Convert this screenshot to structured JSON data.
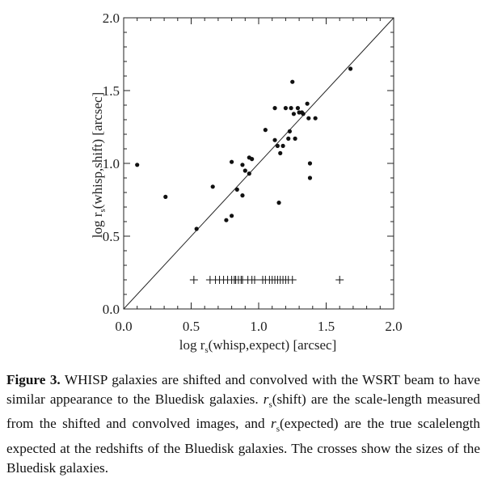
{
  "chart_data": {
    "type": "scatter",
    "xlabel": {
      "pre": "log r",
      "sub": "s",
      "post": "(whisp,expect) [arcsec]"
    },
    "ylabel": {
      "pre": "log r",
      "sub": "s",
      "post": "(whisp,shift) [arcsec]"
    },
    "xlim": [
      0.0,
      2.0
    ],
    "ylim": [
      0.0,
      2.0
    ],
    "x_ticks": [
      "0.0",
      "0.5",
      "1.0",
      "1.5",
      "2.0"
    ],
    "y_ticks": [
      "0.0",
      "0.5",
      "1.0",
      "1.5",
      "2.0"
    ],
    "reference_line": {
      "from": [
        0.0,
        0.0
      ],
      "to": [
        2.0,
        2.0
      ]
    },
    "series": [
      {
        "marker": "dot",
        "points": [
          [
            0.1,
            0.99
          ],
          [
            0.31,
            0.77
          ],
          [
            0.54,
            0.55
          ],
          [
            0.66,
            0.84
          ],
          [
            0.76,
            0.61
          ],
          [
            0.8,
            0.64
          ],
          [
            0.8,
            1.01
          ],
          [
            0.84,
            0.82
          ],
          [
            0.88,
            0.78
          ],
          [
            0.88,
            0.99
          ],
          [
            0.9,
            0.95
          ],
          [
            0.93,
            0.93
          ],
          [
            0.93,
            1.04
          ],
          [
            0.95,
            1.03
          ],
          [
            1.05,
            1.23
          ],
          [
            1.12,
            1.16
          ],
          [
            1.12,
            1.38
          ],
          [
            1.14,
            1.12
          ],
          [
            1.15,
            0.73
          ],
          [
            1.16,
            1.07
          ],
          [
            1.18,
            1.12
          ],
          [
            1.2,
            1.38
          ],
          [
            1.22,
            1.17
          ],
          [
            1.23,
            1.22
          ],
          [
            1.24,
            1.38
          ],
          [
            1.25,
            1.56
          ],
          [
            1.26,
            1.34
          ],
          [
            1.27,
            1.17
          ],
          [
            1.29,
            1.38
          ],
          [
            1.3,
            1.35
          ],
          [
            1.32,
            1.35
          ],
          [
            1.33,
            1.34
          ],
          [
            1.36,
            1.41
          ],
          [
            1.37,
            1.31
          ],
          [
            1.38,
            1.0
          ],
          [
            1.38,
            0.9
          ],
          [
            1.42,
            1.31
          ],
          [
            1.68,
            1.65
          ]
        ]
      },
      {
        "marker": "cross",
        "points": [
          [
            0.52,
            0.2
          ],
          [
            0.64,
            0.2
          ],
          [
            0.68,
            0.2
          ],
          [
            0.71,
            0.2
          ],
          [
            0.74,
            0.2
          ],
          [
            0.77,
            0.2
          ],
          [
            0.8,
            0.2
          ],
          [
            0.82,
            0.2
          ],
          [
            0.83,
            0.2
          ],
          [
            0.85,
            0.2
          ],
          [
            0.87,
            0.2
          ],
          [
            0.88,
            0.2
          ],
          [
            0.92,
            0.2
          ],
          [
            0.95,
            0.2
          ],
          [
            0.97,
            0.2
          ],
          [
            1.03,
            0.2
          ],
          [
            1.05,
            0.2
          ],
          [
            1.08,
            0.2
          ],
          [
            1.1,
            0.2
          ],
          [
            1.12,
            0.2
          ],
          [
            1.14,
            0.2
          ],
          [
            1.16,
            0.2
          ],
          [
            1.18,
            0.2
          ],
          [
            1.2,
            0.2
          ],
          [
            1.22,
            0.2
          ],
          [
            1.25,
            0.2
          ],
          [
            1.6,
            0.2
          ]
        ]
      }
    ]
  },
  "caption": {
    "label": "Figure 3.",
    "text1": " WHISP galaxies are shifted and convolved with the WSRT beam to have similar appearance to the Bluedisk galaxies. ",
    "sym1": "r",
    "sub1": "s",
    "text2": "(shift) are the scale-length measured from the shifted and convolved images, and ",
    "sym2": "r",
    "sub2": "s",
    "text3": "(expected) are the true scalelength expected at the redshifts of the Bluedisk galaxies. The crosses show the sizes of the Bluedisk galaxies."
  }
}
